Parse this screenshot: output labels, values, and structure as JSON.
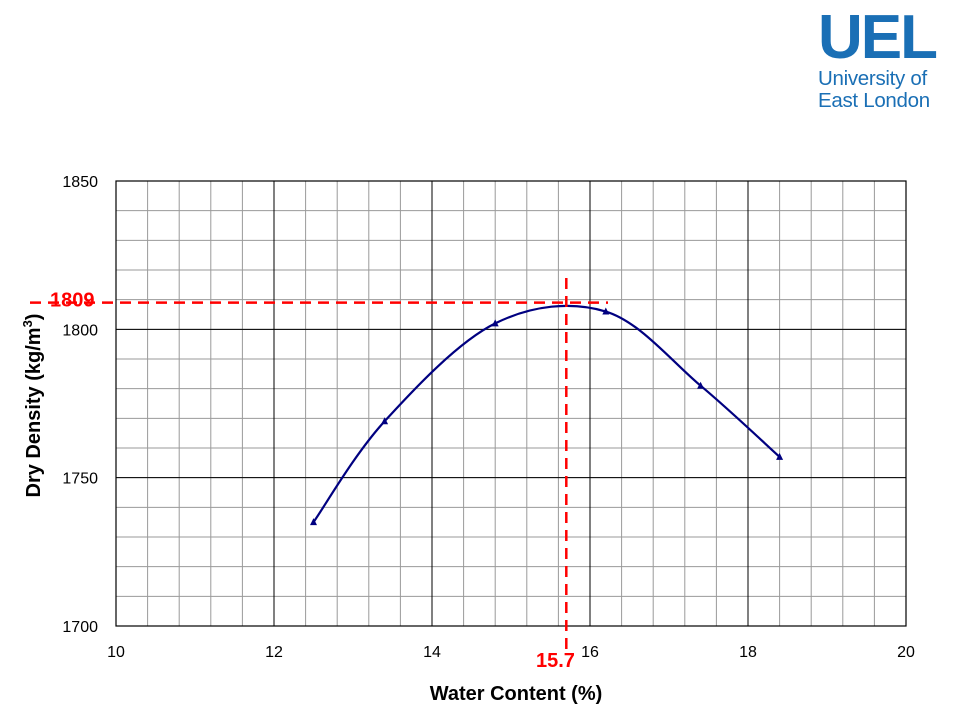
{
  "logo": {
    "mark": "UEL",
    "line1": "University of",
    "line2": "East London",
    "color": "#1a6fb5"
  },
  "chart_data": {
    "type": "line",
    "title": "",
    "xlabel": "Water Content (%)",
    "ylabel_main": "Dry Density (kg/m",
    "ylabel_sup": "3",
    "ylabel_end": ")",
    "xlim": [
      10,
      20
    ],
    "ylim": [
      1700,
      1850
    ],
    "x_ticks": [
      10,
      12,
      14,
      16,
      18,
      20
    ],
    "y_ticks": [
      1700,
      1750,
      1800,
      1850
    ],
    "x_minor_step": 0.4,
    "y_minor_step": 10,
    "grid": true,
    "series_color": "#000080",
    "annotation_color": "#ff0000",
    "series": [
      {
        "x": [
          12.5,
          13.4,
          14.8,
          16.2,
          17.4,
          18.4
        ],
        "y": [
          1735,
          1769,
          1802,
          1806,
          1781,
          1757
        ]
      }
    ],
    "annotations": {
      "peak_x": 15.7,
      "peak_y": 1809,
      "peak_x_label": "15.7",
      "peak_y_label": "1809"
    }
  }
}
